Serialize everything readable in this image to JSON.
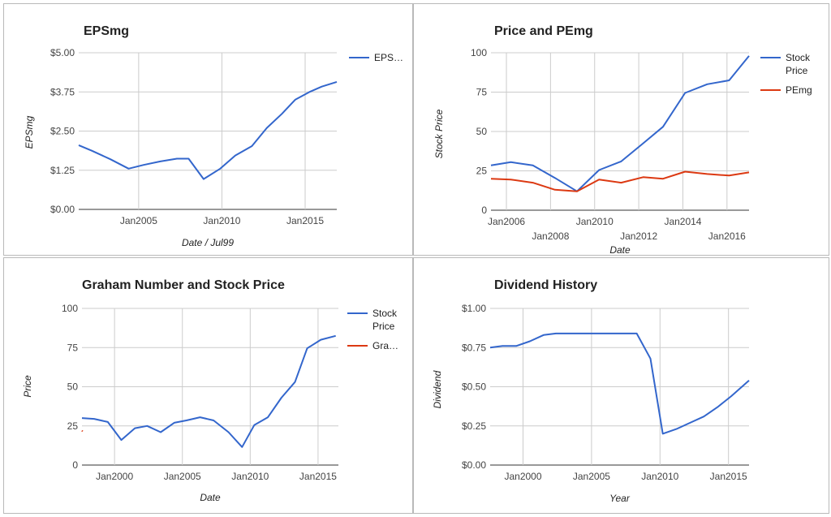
{
  "chart_data": [
    {
      "type": "line",
      "title": "EPSmg",
      "xlabel": "Date / Jul99",
      "ylabel": "EPSmg",
      "ylim": [
        0,
        5
      ],
      "yticks": [
        {
          "v": 0,
          "label": "$0.00"
        },
        {
          "v": 1.25,
          "label": "$1.25"
        },
        {
          "v": 2.5,
          "label": "$2.50"
        },
        {
          "v": 3.75,
          "label": "$3.75"
        },
        {
          "v": 5,
          "label": "$5.00"
        }
      ],
      "xlim": [
        2001.4,
        2016.9
      ],
      "xticks": [
        {
          "v": 2005,
          "label": "Jan2005"
        },
        {
          "v": 2010,
          "label": "Jan2010"
        },
        {
          "v": 2015,
          "label": "Jan2015"
        }
      ],
      "grid": true,
      "legend_position": "right",
      "series": [
        {
          "name": "EPS…",
          "color": "#3366cc",
          "x": [
            2001.4,
            2002.2,
            2003.3,
            2004.4,
            2005.3,
            2006.3,
            2007.3,
            2008.0,
            2008.9,
            2009.9,
            2010.8,
            2011.8,
            2012.7,
            2013.6,
            2014.4,
            2015.3,
            2016.0,
            2016.9
          ],
          "y": [
            2.05,
            1.87,
            1.6,
            1.3,
            1.42,
            1.53,
            1.62,
            1.62,
            0.97,
            1.3,
            1.72,
            2.02,
            2.6,
            3.05,
            3.5,
            3.76,
            3.92,
            4.07
          ]
        }
      ]
    },
    {
      "type": "line",
      "title": "Price and PEmg",
      "xlabel": "Date",
      "ylabel": "Stock Price",
      "ylim": [
        0,
        100
      ],
      "yticks": [
        {
          "v": 0,
          "label": "0"
        },
        {
          "v": 25,
          "label": "25"
        },
        {
          "v": 50,
          "label": "50"
        },
        {
          "v": 75,
          "label": "75"
        },
        {
          "v": 100,
          "label": "100"
        }
      ],
      "xlim": [
        2005.3,
        2017.0
      ],
      "xticks": [
        {
          "v": 2006,
          "label": "Jan2006",
          "row": 0
        },
        {
          "v": 2008,
          "label": "Jan2008",
          "row": 1
        },
        {
          "v": 2010,
          "label": "Jan2010",
          "row": 0
        },
        {
          "v": 2012,
          "label": "Jan2012",
          "row": 1
        },
        {
          "v": 2014,
          "label": "Jan2014",
          "row": 0
        },
        {
          "v": 2016,
          "label": "Jan2016",
          "row": 1
        }
      ],
      "grid": true,
      "legend_position": "right",
      "series": [
        {
          "name": "Stock Price",
          "color": "#3366cc",
          "x": [
            2005.3,
            2006.2,
            2007.2,
            2008.2,
            2009.2,
            2010.2,
            2011.2,
            2012.2,
            2013.1,
            2014.1,
            2015.1,
            2016.1,
            2017.0
          ],
          "y": [
            28.5,
            30.5,
            28.5,
            20.5,
            12,
            25.5,
            31,
            42.5,
            53,
            74.5,
            80,
            82.5,
            98
          ]
        },
        {
          "name": "PEmg",
          "color": "#dc3912",
          "x": [
            2005.3,
            2006.2,
            2007.2,
            2008.2,
            2009.2,
            2010.2,
            2011.2,
            2012.2,
            2013.1,
            2014.1,
            2015.1,
            2016.1,
            2017.0
          ],
          "y": [
            20,
            19.5,
            17.5,
            13,
            12,
            19.5,
            17.5,
            21,
            20,
            24.5,
            23,
            22,
            24
          ]
        }
      ]
    },
    {
      "type": "line",
      "title": "Graham Number and Stock Price",
      "xlabel": "Date",
      "ylabel": "Price",
      "ylim": [
        0,
        100
      ],
      "yticks": [
        {
          "v": 0,
          "label": "0"
        },
        {
          "v": 25,
          "label": "25"
        },
        {
          "v": 50,
          "label": "50"
        },
        {
          "v": 75,
          "label": "75"
        },
        {
          "v": 100,
          "label": "100"
        }
      ],
      "xlim": [
        1997.6,
        2016.5
      ],
      "xticks": [
        {
          "v": 2000,
          "label": "Jan2000"
        },
        {
          "v": 2005,
          "label": "Jan2005"
        },
        {
          "v": 2010,
          "label": "Jan2010"
        },
        {
          "v": 2015,
          "label": "Jan2015"
        }
      ],
      "grid": true,
      "legend_position": "right",
      "series": [
        {
          "name": "Stock Price",
          "color": "#3366cc",
          "x": [
            1997.6,
            1998.5,
            1999.5,
            2000.5,
            2001.5,
            2002.4,
            2003.4,
            2004.4,
            2005.3,
            2006.3,
            2007.3,
            2008.4,
            2009.4,
            2010.3,
            2011.3,
            2012.3,
            2013.3,
            2014.2,
            2015.2,
            2016.3
          ],
          "y": [
            30,
            29.5,
            27.5,
            16,
            23.5,
            25,
            21,
            27,
            28.5,
            30.5,
            28.5,
            21,
            11.5,
            25.5,
            30.5,
            43,
            53,
            74.5,
            80,
            82.5
          ]
        },
        {
          "name": "Gra…",
          "color": "#dc3912",
          "x": [
            1997.6,
            1997.65
          ],
          "y": [
            22,
            21.5
          ]
        }
      ]
    },
    {
      "type": "line",
      "title": "Dividend History",
      "xlabel": "Year",
      "ylabel": "Dividend",
      "ylim": [
        0,
        1
      ],
      "yticks": [
        {
          "v": 0,
          "label": "$0.00"
        },
        {
          "v": 0.25,
          "label": "$0.25"
        },
        {
          "v": 0.5,
          "label": "$0.50"
        },
        {
          "v": 0.75,
          "label": "$0.75"
        },
        {
          "v": 1,
          "label": "$1.00"
        }
      ],
      "xlim": [
        1997.6,
        2016.5
      ],
      "xticks": [
        {
          "v": 2000,
          "label": "Jan2000"
        },
        {
          "v": 2005,
          "label": "Jan2005"
        },
        {
          "v": 2010,
          "label": "Jan2010"
        },
        {
          "v": 2015,
          "label": "Jan2015"
        }
      ],
      "grid": true,
      "legend_position": "none",
      "series": [
        {
          "name": "",
          "color": "#3366cc",
          "x": [
            1997.6,
            1998.5,
            1999.5,
            2000.5,
            2001.5,
            2002.4,
            2003.4,
            2004.4,
            2005.3,
            2006.3,
            2007.3,
            2008.3,
            2009.3,
            2010.2,
            2011.2,
            2012.2,
            2013.2,
            2014.2,
            2015.2,
            2016.5
          ],
          "y": [
            0.75,
            0.76,
            0.76,
            0.79,
            0.83,
            0.84,
            0.84,
            0.84,
            0.84,
            0.84,
            0.84,
            0.84,
            0.68,
            0.2,
            0.23,
            0.27,
            0.31,
            0.37,
            0.44,
            0.54
          ]
        }
      ]
    }
  ]
}
